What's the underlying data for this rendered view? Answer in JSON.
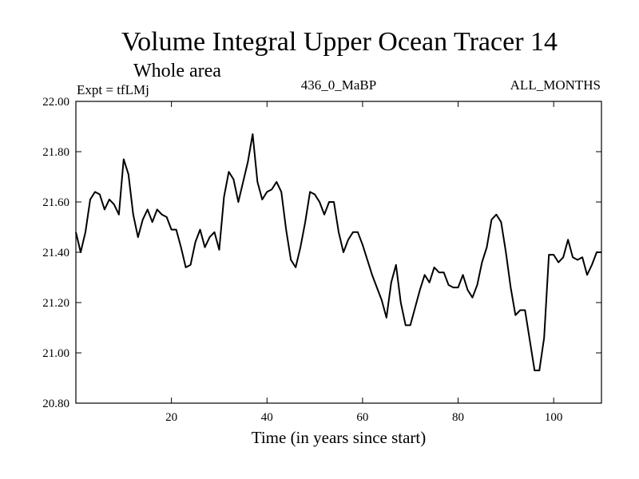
{
  "chart_data": {
    "type": "line",
    "title": "Volume Integral Upper Ocean Tracer 14",
    "subtitle": "Whole area",
    "experiment": "Expt = tfLMj",
    "period": "436_0_MaBP",
    "season": "ALL_MONTHS",
    "xlabel": "Time (in years since start)",
    "ylabel": "",
    "xlim": [
      0,
      110
    ],
    "ylim": [
      20.8,
      22.0
    ],
    "xticks": [
      20,
      40,
      60,
      80,
      100
    ],
    "xtick_labels": [
      "20",
      "40",
      "60",
      "80",
      "100"
    ],
    "yticks": [
      20.8,
      21.0,
      21.2,
      21.4,
      21.6,
      21.8,
      22.0
    ],
    "ytick_labels": [
      "20.80",
      "21.00",
      "21.20",
      "21.40",
      "21.60",
      "21.80",
      "22.00"
    ],
    "grid": false,
    "line_color": "#000000",
    "series": [
      {
        "name": "Tracer 14",
        "x": [
          0,
          1,
          2,
          3,
          4,
          5,
          6,
          7,
          8,
          9,
          10,
          11,
          12,
          13,
          14,
          15,
          16,
          17,
          18,
          19,
          20,
          21,
          22,
          23,
          24,
          25,
          26,
          27,
          28,
          29,
          30,
          31,
          32,
          33,
          34,
          35,
          36,
          37,
          38,
          39,
          40,
          41,
          42,
          43,
          44,
          45,
          46,
          47,
          48,
          49,
          50,
          51,
          52,
          53,
          54,
          55,
          56,
          57,
          58,
          59,
          60,
          61,
          62,
          63,
          64,
          65,
          66,
          67,
          68,
          69,
          70,
          71,
          72,
          73,
          74,
          75,
          76,
          77,
          78,
          79,
          80,
          81,
          82,
          83,
          84,
          85,
          86,
          87,
          88,
          89,
          90,
          91,
          92,
          93,
          94,
          95,
          96,
          97,
          98,
          99,
          100,
          101,
          102,
          103,
          104,
          105,
          106,
          107,
          108,
          109,
          110
        ],
        "values": [
          21.48,
          21.4,
          21.48,
          21.61,
          21.64,
          21.63,
          21.57,
          21.61,
          21.59,
          21.55,
          21.77,
          21.71,
          21.55,
          21.46,
          21.53,
          21.57,
          21.52,
          21.57,
          21.55,
          21.54,
          21.49,
          21.49,
          21.42,
          21.34,
          21.35,
          21.44,
          21.49,
          21.42,
          21.46,
          21.48,
          21.41,
          21.62,
          21.72,
          21.69,
          21.6,
          21.68,
          21.76,
          21.87,
          21.68,
          21.61,
          21.64,
          21.65,
          21.68,
          21.64,
          21.49,
          21.37,
          21.34,
          21.42,
          21.52,
          21.64,
          21.63,
          21.6,
          21.55,
          21.6,
          21.6,
          21.48,
          21.4,
          21.45,
          21.48,
          21.48,
          21.43,
          21.37,
          21.31,
          21.26,
          21.21,
          21.14,
          21.28,
          21.35,
          21.2,
          21.11,
          21.11,
          21.18,
          21.25,
          21.31,
          21.28,
          21.34,
          21.32,
          21.32,
          21.27,
          21.26,
          21.26,
          21.31,
          21.25,
          21.22,
          21.27,
          21.36,
          21.42,
          21.53,
          21.55,
          21.52,
          21.4,
          21.26,
          21.15,
          21.17,
          21.17,
          21.05,
          20.93,
          20.93,
          21.06,
          21.39,
          21.39,
          21.36,
          21.38,
          21.45,
          21.38,
          21.37,
          21.38,
          21.31,
          21.35,
          21.4,
          21.4
        ]
      }
    ]
  }
}
